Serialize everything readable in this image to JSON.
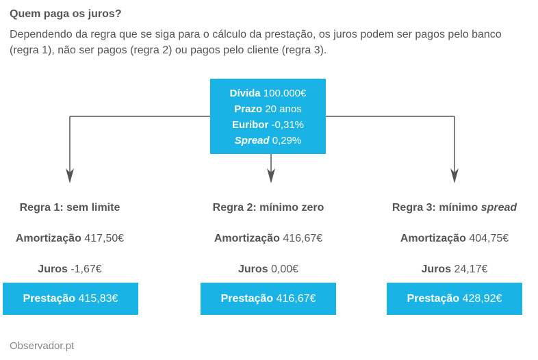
{
  "header": {
    "title": "Quem paga os juros?",
    "description": "Dependendo da regra que se siga para o cálculo da prestação, os juros podem ser pagos pelo banco (regra 1), não ser pagos (regra 2) ou pagos pelo cliente (regra 3)."
  },
  "loan": {
    "divida_label": "Dívida",
    "divida_value": "100.000€",
    "prazo_label": "Prazo",
    "prazo_value": "20 anos",
    "euribor_label": "Euribor",
    "euribor_value": "-0,31%",
    "spread_label": "Spread",
    "spread_value": "0,29%"
  },
  "labels": {
    "amortizacao": "Amortização",
    "juros": "Juros",
    "prestacao": "Prestação"
  },
  "rules": [
    {
      "title": "Regra 1: sem limite",
      "title_emph": "",
      "amortizacao": "417,50€",
      "juros": "-1,67€",
      "prestacao": "415,83€"
    },
    {
      "title": "Regra 2: mínimo zero",
      "title_emph": "",
      "amortizacao": "416,67€",
      "juros": "0,00€",
      "prestacao": "416,67€"
    },
    {
      "title": "Regra 3: mínimo ",
      "title_emph": "spread",
      "amortizacao": "404,75€",
      "juros": "24,17€",
      "prestacao": "428,92€"
    }
  ],
  "footer": {
    "source": "Observador.pt"
  },
  "colors": {
    "accent": "#1ab3e6",
    "text": "#555555",
    "arrow": "#555555"
  }
}
